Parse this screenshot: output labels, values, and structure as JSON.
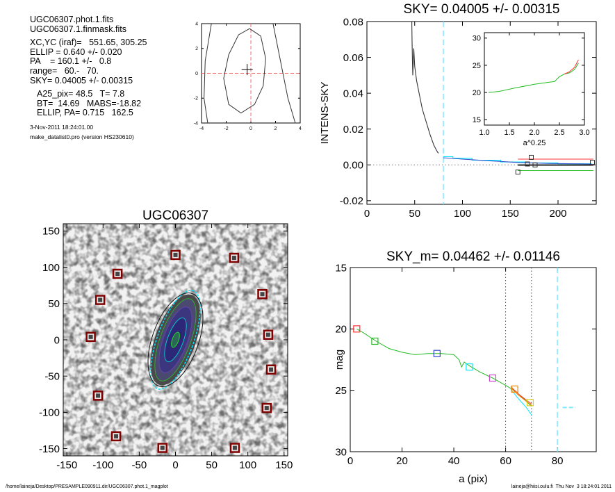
{
  "info": {
    "file1": "UGC06307.phot.1.fits",
    "file2": "UGC06307.1.finmask.fits",
    "center": "XC,YC (iraf)=   551.65, 305.25",
    "ellip": "ELLIP = 0.640 +/- 0.020",
    "pa": "PA    = 160.1 +/-   0.8",
    "range": "range=   60.-   70.",
    "sky": "SKY= 0.04005 +/- 0.00315",
    "a25": "A25_pix= 48.5   T= 7.8",
    "bt": "BT=  14.69   MABS=-18.82",
    "ellip_pa": "ELLIP, PA= 0.715   162.5",
    "date": "3-Nov-2011 18:24:01.00",
    "program": "make_datalist0.pro (version HS230610)"
  },
  "footer": {
    "path": "/home/laineja/Desktop/PRESAMPLE090911.dir/UGC06307.phot.1_magplot",
    "stamp": "laineja@hiisi.oulu.fi  Thu Nov  3 18:24:01 2011"
  },
  "colors": {
    "cyan": "#00e5ff",
    "red": "#ff3030",
    "green": "#22bb22",
    "blue": "#3344cc",
    "magenta": "#cc44cc",
    "orange": "#ee8800",
    "mask_box": "#800000"
  },
  "chart_data": [
    {
      "type": "line",
      "title": "",
      "xlabel": "",
      "ylabel": "",
      "xlim": [
        -4,
        4
      ],
      "ylim": [
        -4,
        4
      ],
      "xticks": [
        "-4",
        "-2",
        "0",
        "2",
        "4"
      ],
      "yticks": [
        "-4",
        "-2",
        "0",
        "2",
        "4"
      ],
      "reference_lines": {
        "x": 0,
        "y": 0
      },
      "marker": [
        -0.3,
        0.3
      ],
      "contours": [
        [
          [
            -3.2,
            4
          ],
          [
            -3.7,
            1
          ],
          [
            -3.8,
            -2
          ],
          [
            -3.5,
            -4
          ]
        ],
        [
          [
            1.8,
            4
          ],
          [
            2.4,
            1
          ],
          [
            3.0,
            -2
          ],
          [
            3.6,
            -4
          ]
        ],
        [
          [
            -0.1,
            3.6
          ],
          [
            0.8,
            3.0
          ],
          [
            1.2,
            1.2
          ],
          [
            1.0,
            -1.0
          ],
          [
            0.3,
            -2.5
          ],
          [
            -0.8,
            -3.2
          ],
          [
            -1.8,
            -2.5
          ],
          [
            -2.2,
            -0.4
          ],
          [
            -1.8,
            1.5
          ],
          [
            -1.0,
            3.1
          ],
          [
            -0.1,
            3.6
          ]
        ]
      ]
    },
    {
      "type": "line",
      "title": "SKY= 0.04005 +/- 0.00315",
      "xlabel": "",
      "ylabel": "INTENS-SKY",
      "xlim": [
        0,
        240
      ],
      "ylim": [
        -0.022,
        0.08
      ],
      "xticks": [
        "0",
        "50",
        "100",
        "150",
        "200"
      ],
      "yticks": [
        "0.08",
        "0.06",
        "0.04",
        "0.02",
        "0.00",
        "-0.02"
      ],
      "vline": 80,
      "series": [
        {
          "color": "#333333",
          "values": [
            [
              47,
              0.08
            ],
            [
              47.3,
              0.068
            ],
            [
              47.6,
              0.058
            ],
            [
              48,
              0.05
            ],
            [
              49,
              0.065
            ],
            [
              50,
              0.055
            ],
            [
              52,
              0.047
            ],
            [
              55,
              0.039
            ],
            [
              58,
              0.031
            ],
            [
              62,
              0.024
            ],
            [
              66,
              0.017
            ],
            [
              70,
              0.011
            ],
            [
              72,
              0.009
            ],
            [
              74,
              0.007
            ],
            [
              75,
              0.0065
            ]
          ]
        },
        {
          "color": "#00e5ff",
          "values": [
            [
              80,
              0.0046
            ],
            [
              90,
              0.0046
            ],
            [
              90,
              0.0037
            ],
            [
              110,
              0.0037
            ],
            [
              110,
              0.0026
            ],
            [
              140,
              0.0026
            ],
            [
              140,
              0.0016
            ],
            [
              170,
              0.0016
            ],
            [
              170,
              0.0011
            ],
            [
              200,
              0.0011
            ],
            [
              200,
              0.0006
            ],
            [
              235,
              0.0006
            ]
          ]
        },
        {
          "color": "#3355cc",
          "values": [
            [
              80,
              0.004
            ],
            [
              100,
              0.0032
            ],
            [
              130,
              0.0022
            ],
            [
              160,
              0.0013
            ],
            [
              190,
              0.0008
            ],
            [
              235,
              0.0005
            ]
          ]
        },
        {
          "color": "#ff3030",
          "values": [
            [
              158,
              0.0032
            ],
            [
              237,
              0.0032
            ]
          ]
        },
        {
          "color": "#22bb22",
          "values": [
            [
              158,
              -0.0032
            ],
            [
              237,
              -0.0032
            ]
          ]
        },
        {
          "color": "#000000",
          "values": [
            [
              158,
              -0.0001
            ],
            [
              237,
              -0.0001
            ]
          ]
        }
      ],
      "boxes": [
        [
          158,
          -0.004
        ],
        [
          172,
          0.0042
        ],
        [
          168,
          0.0005
        ],
        [
          176,
          0.0
        ],
        [
          236,
          0.0014
        ]
      ]
    },
    {
      "type": "line",
      "title": "",
      "xlabel": "a^0.25",
      "ylabel": "",
      "xlim": [
        1.0,
        3.0
      ],
      "ylim": [
        31,
        14
      ],
      "xticks": [
        "1.0",
        "1.5",
        "2.0",
        "2.5",
        "3.0"
      ],
      "yticks": [
        "15",
        "20",
        "25",
        "30"
      ],
      "series": [
        {
          "color": "#22bb22",
          "values": [
            [
              1.08,
              20.0
            ],
            [
              1.3,
              20.2
            ],
            [
              1.6,
              20.8
            ],
            [
              2.0,
              21.5
            ],
            [
              2.3,
              21.9
            ],
            [
              2.4,
              22.0
            ],
            [
              2.5,
              22.9
            ],
            [
              2.6,
              23.4
            ],
            [
              2.7,
              23.6
            ],
            [
              2.8,
              24.2
            ],
            [
              2.88,
              25.4
            ]
          ]
        },
        {
          "color": "#ff3030",
          "values": [
            [
              2.6,
              23.4
            ],
            [
              2.7,
              23.8
            ],
            [
              2.8,
              24.6
            ],
            [
              2.88,
              26.0
            ]
          ]
        }
      ]
    },
    {
      "type": "heatmap",
      "title": "UGC06307",
      "xlabel": "",
      "ylabel": "",
      "xlim": [
        -155,
        155
      ],
      "ylim": [
        -160,
        160
      ],
      "xticks": [
        "-150",
        "-100",
        "-50",
        "0",
        "50",
        "100",
        "150"
      ],
      "yticks": [
        "150",
        "100",
        "50",
        "0",
        "-50",
        "-100",
        "-150"
      ],
      "ellipse_axes": [
        [
          36,
          12.5
        ],
        [
          30,
          10.5
        ],
        [
          24,
          8.3
        ],
        [
          16,
          5.5
        ],
        [
          5.5,
          2.2
        ]
      ],
      "ellipse_colors": [
        "#00e5ff",
        "#33aa33",
        "#6644aa",
        "#00c8c8",
        "#22dd22"
      ],
      "outer_ellipse": [
        66,
        28
      ],
      "mask_positions": [
        [
          0,
          117
        ],
        [
          81,
          113
        ],
        [
          -80,
          91
        ],
        [
          120,
          63
        ],
        [
          -104,
          55
        ],
        [
          -117,
          4
        ],
        [
          128,
          7
        ],
        [
          132,
          -41
        ],
        [
          -107,
          -77
        ],
        [
          126,
          -94
        ],
        [
          -82,
          -133
        ],
        [
          -18,
          -149
        ],
        [
          82,
          -149
        ]
      ]
    },
    {
      "type": "line",
      "title": "SKY_m=  0.04462 +/- 0.01146",
      "xlabel": "a (pix)",
      "ylabel": "mag",
      "xlim": [
        0,
        95
      ],
      "ylim": [
        30,
        15
      ],
      "xticks": [
        "0",
        "20",
        "40",
        "60",
        "80"
      ],
      "yticks": [
        "15",
        "20",
        "25",
        "30"
      ],
      "vlines": [
        60,
        70
      ],
      "cyan_vline": 80,
      "series": [
        {
          "color": "#22bb22",
          "values": [
            [
              2.5,
              20.0
            ],
            [
              5,
              20.3
            ],
            [
              10,
              21.0
            ],
            [
              15,
              21.6
            ],
            [
              20,
              21.9
            ],
            [
              25,
              22.1
            ],
            [
              30,
              22.0
            ],
            [
              35,
              22.0
            ],
            [
              40,
              22.1
            ],
            [
              42,
              22.5
            ],
            [
              43,
              23.1
            ],
            [
              44,
              22.7
            ],
            [
              46,
              23.0
            ],
            [
              50,
              23.5
            ],
            [
              55,
              24.0
            ],
            [
              60,
              24.6
            ],
            [
              64,
              25.1
            ],
            [
              67,
              25.7
            ],
            [
              70,
              26.3
            ]
          ]
        },
        {
          "color": "#ff3030",
          "values": [
            [
              62,
              24.7
            ],
            [
              65,
              25.3
            ],
            [
              68,
              25.8
            ],
            [
              70,
              26.1
            ]
          ]
        },
        {
          "color": "#00e5ff",
          "values": [
            [
              62,
              24.9
            ],
            [
              65,
              25.7
            ],
            [
              68,
              26.4
            ],
            [
              70,
              27.0
            ]
          ]
        },
        {
          "color": "#ee8800",
          "values": [
            [
              62,
              24.8
            ],
            [
              65,
              25.4
            ],
            [
              68,
              25.9
            ],
            [
              70,
              26.2
            ]
          ]
        }
      ],
      "sky_segment": [
        [
          82,
          26.4
        ],
        [
          87,
          26.4
        ]
      ],
      "markers": [
        {
          "x": 2.5,
          "y": 20.0,
          "color": "#ff3030"
        },
        {
          "x": 9.5,
          "y": 21.0,
          "color": "#22bb22"
        },
        {
          "x": 33.5,
          "y": 22.0,
          "color": "#3344cc"
        },
        {
          "x": 46,
          "y": 23.1,
          "color": "#00e5ff"
        },
        {
          "x": 55,
          "y": 24.0,
          "color": "#cc44cc"
        },
        {
          "x": 63.5,
          "y": 24.9,
          "color": "#ee8800"
        },
        {
          "x": 69.5,
          "y": 26.0,
          "color": "#ddcc22"
        }
      ]
    }
  ]
}
